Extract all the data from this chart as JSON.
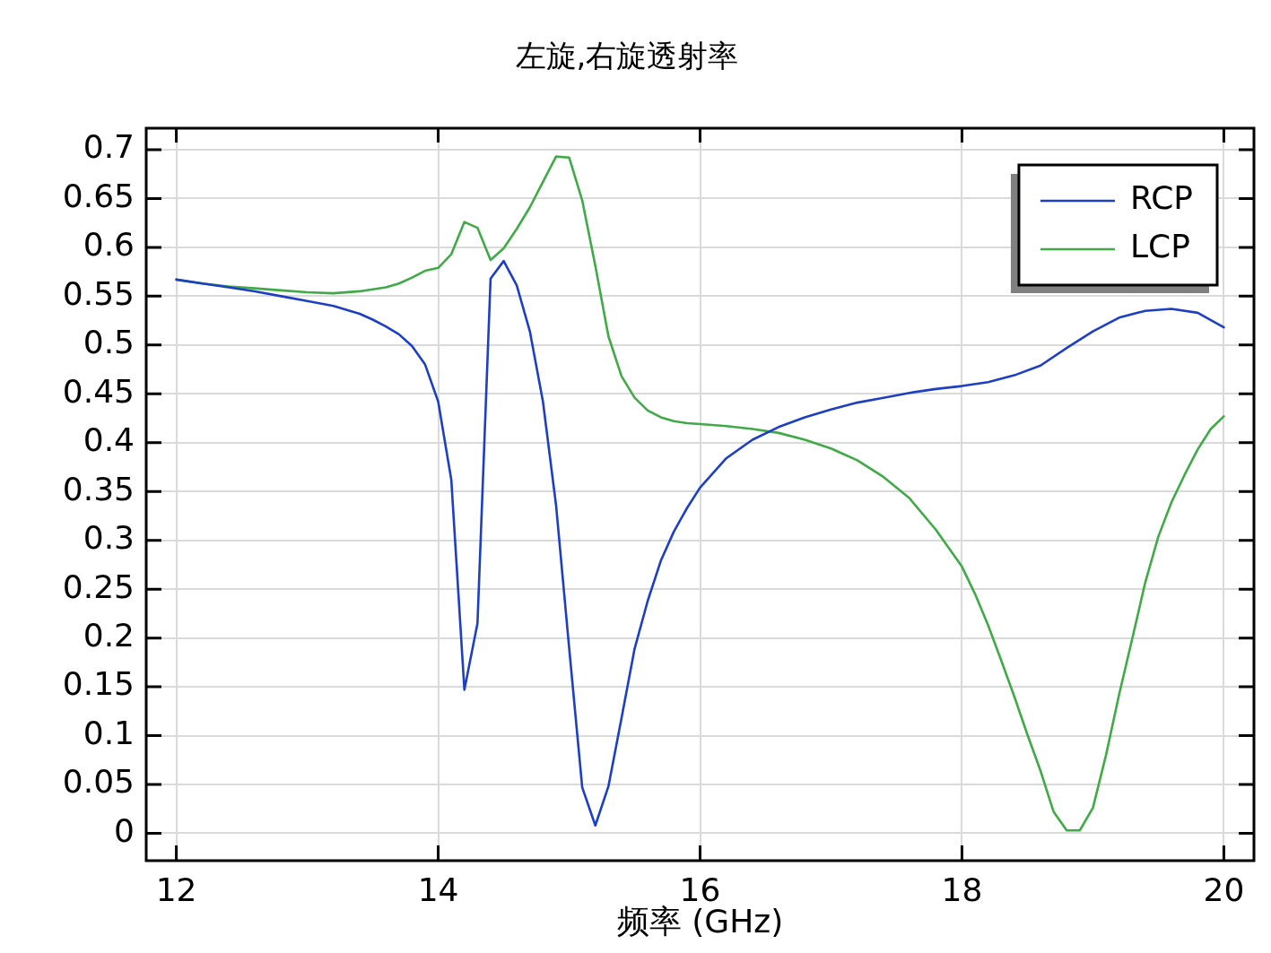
{
  "chart_data": {
    "type": "line",
    "title": "左旋,右旋透射率",
    "xlabel": "频率 (GHz)",
    "series": [
      {
        "name": "RCP",
        "color": "#1d3fc4",
        "x": [
          12.0,
          12.2,
          12.4,
          12.6,
          12.8,
          13.0,
          13.2,
          13.4,
          13.5,
          13.6,
          13.7,
          13.8,
          13.9,
          14.0,
          14.1,
          14.2,
          14.3,
          14.4,
          14.5,
          14.6,
          14.7,
          14.8,
          14.9,
          15.0,
          15.1,
          15.2,
          15.3,
          15.4,
          15.5,
          15.6,
          15.7,
          15.8,
          15.9,
          16.0,
          16.2,
          16.4,
          16.6,
          16.8,
          17.0,
          17.2,
          17.4,
          17.6,
          17.8,
          18.0,
          18.2,
          18.4,
          18.6,
          18.8,
          19.0,
          19.2,
          19.4,
          19.6,
          19.8,
          20.0
        ],
        "values": [
          0.567,
          0.563,
          0.559,
          0.555,
          0.55,
          0.545,
          0.54,
          0.532,
          0.526,
          0.519,
          0.511,
          0.499,
          0.48,
          0.442,
          0.362,
          0.147,
          0.215,
          0.568,
          0.586,
          0.561,
          0.514,
          0.442,
          0.336,
          0.19,
          0.047,
          0.008,
          0.048,
          0.118,
          0.189,
          0.238,
          0.279,
          0.309,
          0.333,
          0.354,
          0.384,
          0.403,
          0.416,
          0.426,
          0.434,
          0.441,
          0.446,
          0.451,
          0.455,
          0.458,
          0.462,
          0.469,
          0.479,
          0.497,
          0.514,
          0.528,
          0.535,
          0.537,
          0.533,
          0.518
        ]
      },
      {
        "name": "LCP",
        "color": "#3faa46",
        "x": [
          12.0,
          12.2,
          12.4,
          12.6,
          12.8,
          13.0,
          13.2,
          13.4,
          13.5,
          13.6,
          13.7,
          13.8,
          13.9,
          14.0,
          14.1,
          14.2,
          14.3,
          14.4,
          14.5,
          14.6,
          14.7,
          14.8,
          14.9,
          15.0,
          15.1,
          15.2,
          15.3,
          15.4,
          15.5,
          15.6,
          15.7,
          15.8,
          15.9,
          16.0,
          16.2,
          16.4,
          16.6,
          16.8,
          17.0,
          17.2,
          17.4,
          17.6,
          17.8,
          18.0,
          18.1,
          18.2,
          18.3,
          18.4,
          18.5,
          18.6,
          18.7,
          18.8,
          18.9,
          19.0,
          19.1,
          19.2,
          19.3,
          19.4,
          19.5,
          19.6,
          19.7,
          19.8,
          19.9,
          20.0
        ],
        "values": [
          0.567,
          0.563,
          0.56,
          0.558,
          0.556,
          0.554,
          0.553,
          0.555,
          0.557,
          0.559,
          0.563,
          0.569,
          0.576,
          0.579,
          0.593,
          0.626,
          0.62,
          0.587,
          0.599,
          0.619,
          0.641,
          0.667,
          0.693,
          0.692,
          0.648,
          0.581,
          0.509,
          0.468,
          0.446,
          0.433,
          0.426,
          0.422,
          0.42,
          0.419,
          0.417,
          0.414,
          0.41,
          0.403,
          0.394,
          0.382,
          0.365,
          0.343,
          0.311,
          0.273,
          0.245,
          0.213,
          0.177,
          0.14,
          0.101,
          0.064,
          0.022,
          0.003,
          0.003,
          0.026,
          0.08,
          0.142,
          0.199,
          0.257,
          0.304,
          0.339,
          0.367,
          0.393,
          0.414,
          0.427
        ]
      }
    ],
    "xlim": [
      11.77,
      20.23
    ],
    "ylim": [
      -0.028,
      0.722
    ],
    "xticks": [
      12,
      14,
      16,
      18,
      20
    ],
    "yticks": [
      0,
      0.05,
      0.1,
      0.15,
      0.2,
      0.25,
      0.3,
      0.35,
      0.4,
      0.45,
      0.5,
      0.55,
      0.6,
      0.65,
      0.7
    ],
    "grid": true,
    "legend": "top right"
  }
}
